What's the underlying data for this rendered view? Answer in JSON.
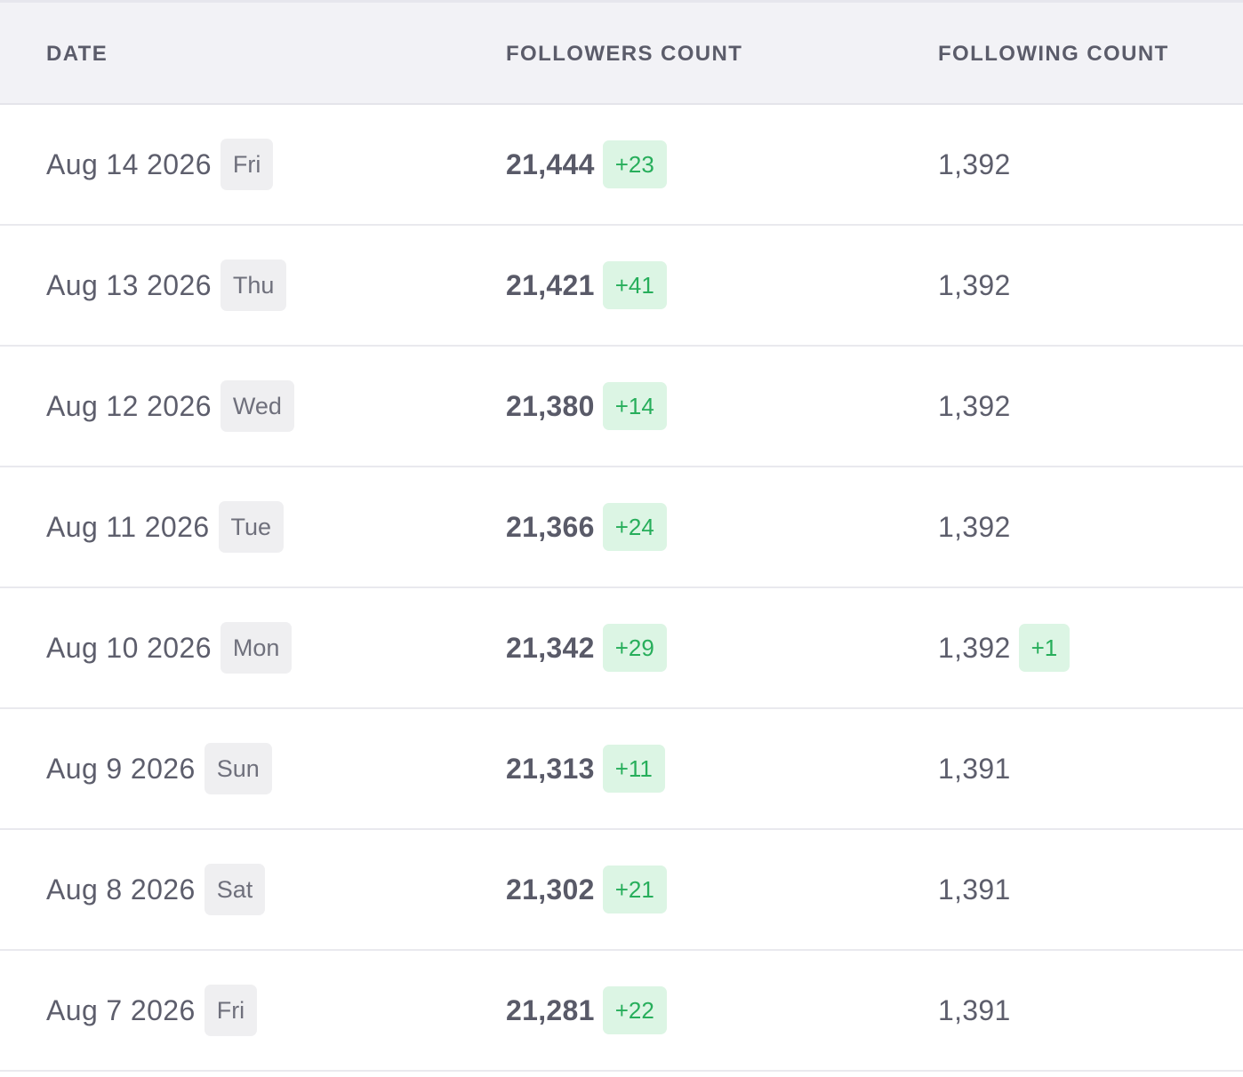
{
  "header": {
    "date_label": "DATE",
    "followers_label": "FOLLOWERS COUNT",
    "following_label": "FOLLOWING COUNT"
  },
  "colors": {
    "header_bg": "#f2f2f6",
    "badge_green_bg": "#dcf5e4",
    "badge_green_text": "#27ae5b",
    "day_badge_bg": "#efeff1"
  },
  "rows": [
    {
      "date": "Aug 14 2026",
      "day": "Fri",
      "followers": "21,444",
      "followers_delta": "+23",
      "following": "1,392",
      "following_delta": ""
    },
    {
      "date": "Aug 13 2026",
      "day": "Thu",
      "followers": "21,421",
      "followers_delta": "+41",
      "following": "1,392",
      "following_delta": ""
    },
    {
      "date": "Aug 12 2026",
      "day": "Wed",
      "followers": "21,380",
      "followers_delta": "+14",
      "following": "1,392",
      "following_delta": ""
    },
    {
      "date": "Aug 11 2026",
      "day": "Tue",
      "followers": "21,366",
      "followers_delta": "+24",
      "following": "1,392",
      "following_delta": ""
    },
    {
      "date": "Aug 10 2026",
      "day": "Mon",
      "followers": "21,342",
      "followers_delta": "+29",
      "following": "1,392",
      "following_delta": "+1"
    },
    {
      "date": "Aug 9 2026",
      "day": "Sun",
      "followers": "21,313",
      "followers_delta": "+11",
      "following": "1,391",
      "following_delta": ""
    },
    {
      "date": "Aug 8 2026",
      "day": "Sat",
      "followers": "21,302",
      "followers_delta": "+21",
      "following": "1,391",
      "following_delta": ""
    },
    {
      "date": "Aug 7 2026",
      "day": "Fri",
      "followers": "21,281",
      "followers_delta": "+22",
      "following": "1,391",
      "following_delta": ""
    }
  ]
}
